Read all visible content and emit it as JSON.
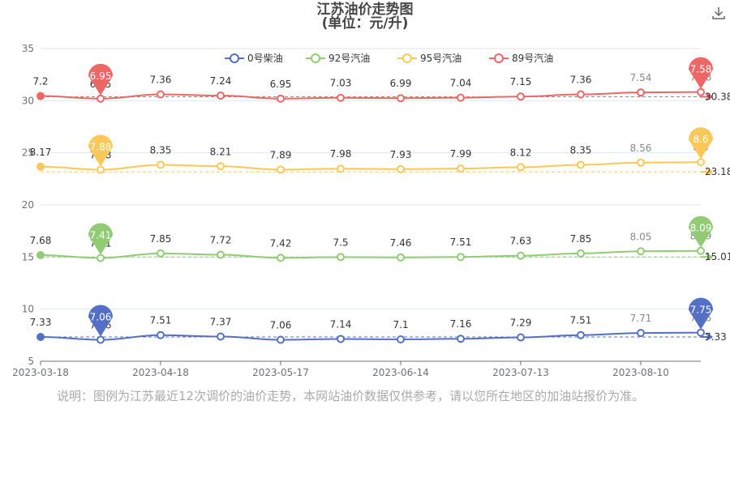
{
  "title": "江苏油价走势图",
  "subtitle": "(单位：元/升)",
  "note": "说明：图例为江苏最近12次调价的油价走势，本网站油价数据仅供参考，请以您所在地区的加油站报价为准。",
  "icons": {
    "download": "download-icon"
  },
  "chart_data": {
    "type": "line",
    "x_ticks": [
      "2023-03-18",
      "2023-04-18",
      "2023-05-17",
      "2023-06-14",
      "2023-07-13",
      "2023-08-10"
    ],
    "y_ticks": [
      5,
      10,
      15,
      20,
      25,
      30,
      35
    ],
    "ylim": [
      5,
      35
    ],
    "grid": true,
    "legend": "top-center",
    "series": [
      {
        "name": "0号柴油",
        "color": "#5470c6",
        "values": [
          7.33,
          7.06,
          7.51,
          7.37,
          7.06,
          7.14,
          7.1,
          7.16,
          7.29,
          7.51,
          7.71,
          7.75
        ],
        "max": "7.75",
        "min": "7.06",
        "avg": "7.33"
      },
      {
        "name": "92号汽油",
        "color": "#91cc75",
        "values": [
          7.68,
          7.41,
          7.85,
          7.72,
          7.42,
          7.5,
          7.46,
          7.51,
          7.63,
          7.85,
          8.05,
          8.09
        ],
        "max": "8.09",
        "min": "7.41",
        "avg": "15.01"
      },
      {
        "name": "95号汽油",
        "color": "#fac858",
        "values": [
          8.17,
          7.88,
          8.35,
          8.21,
          7.89,
          7.98,
          7.93,
          7.99,
          8.12,
          8.35,
          8.56,
          8.6
        ],
        "max": "8.6",
        "min": "7.88",
        "avg": "23.18"
      },
      {
        "name": "89号汽油",
        "color": "#ee6666",
        "values": [
          7.2,
          6.95,
          7.36,
          7.24,
          6.95,
          7.03,
          6.99,
          7.04,
          7.15,
          7.36,
          7.54,
          7.58
        ],
        "max": "7.58",
        "min": "6.95",
        "avg": "30.38"
      }
    ]
  }
}
